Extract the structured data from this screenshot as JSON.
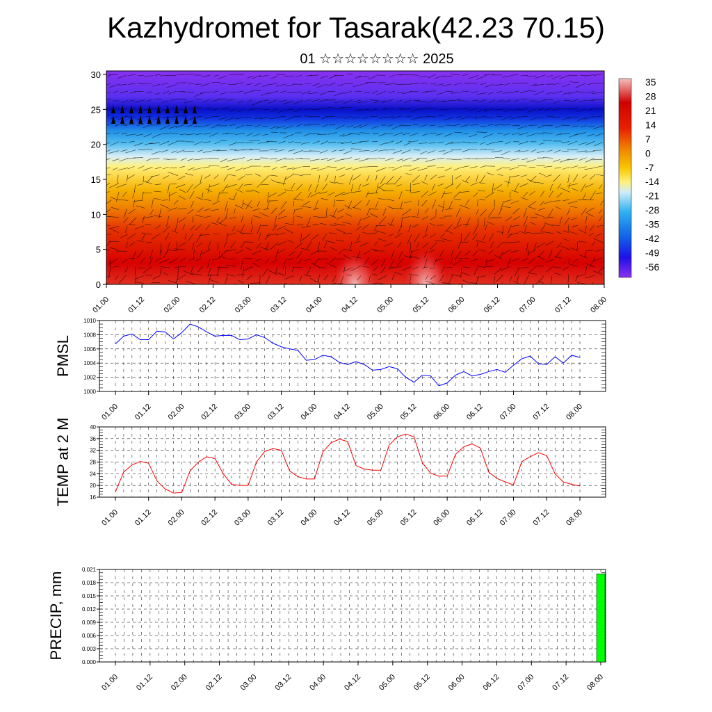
{
  "title": "Kazhydromet for Tasarak(42.23 70.15)",
  "subtitle": "01 ☆☆☆☆☆☆☆☆ 2025",
  "chart_data": [
    {
      "type": "heatmap",
      "y_ticks": [
        "0",
        "5",
        "10",
        "15",
        "20",
        "25",
        "30"
      ],
      "ylim": [
        0,
        30.5
      ],
      "x_ticks": [
        "01.00",
        "01.12",
        "02.00",
        "02.12",
        "03.00",
        "03.12",
        "04.00",
        "04.12",
        "05.00",
        "05.12",
        "06.00",
        "06.12",
        "07.00",
        "07.12",
        "08.00"
      ],
      "colorbar_labels": [
        "35",
        "28",
        "21",
        "14",
        "7",
        "0",
        "-7",
        "-14",
        "-21",
        "-28",
        "-35",
        "-42",
        "-49",
        "-56"
      ],
      "colorbar_range": [
        -63,
        42
      ],
      "colors": {
        "warm_peak": "#f4c0c0",
        "red": "#d80000",
        "orange": "#f4a400",
        "yellow": "#ffe870",
        "pale_blue": "#c0e4f4",
        "cyan": "#20a8e8",
        "blue": "#1020e0",
        "purple": "#8830f0"
      },
      "overlay": "wind vectors"
    },
    {
      "type": "line",
      "ylabel": "PMSL",
      "ylim": [
        1000,
        1010
      ],
      "y_ticks": [
        "1000",
        "1002",
        "1004",
        "1006",
        "1008",
        "1010"
      ],
      "x_ticks": [
        "01.00",
        "01.12",
        "02.00",
        "02.12",
        "03.00",
        "03.12",
        "04.00",
        "04.12",
        "05.00",
        "05.12",
        "06.00",
        "06.12",
        "07.00",
        "07.12",
        "08.00"
      ],
      "line_color": "#0000ff",
      "values": [
        1006.7,
        1007.8,
        1008.1,
        1007.3,
        1007.3,
        1008.5,
        1008.4,
        1007.4,
        1008.3,
        1009.5,
        1009.1,
        1008.4,
        1007.8,
        1007.9,
        1007.9,
        1007.3,
        1007.4,
        1008.0,
        1007.6,
        1006.8,
        1006.3,
        1006.0,
        1005.8,
        1004.4,
        1004.5,
        1005.1,
        1004.9,
        1004.1,
        1003.8,
        1004.2,
        1003.8,
        1003.0,
        1003.1,
        1003.5,
        1003.2,
        1002.0,
        1001.3,
        1002.3,
        1002.2,
        1000.8,
        1001.2,
        1002.3,
        1002.8,
        1002.2,
        1002.4,
        1002.8,
        1003.1,
        1002.7,
        1003.7,
        1004.6,
        1005.0,
        1003.9,
        1003.8,
        1004.9,
        1004.0,
        1005.1,
        1004.8
      ]
    },
    {
      "type": "line",
      "ylabel": "TEMP at 2 M",
      "ylim": [
        16,
        40
      ],
      "y_ticks": [
        "16",
        "20",
        "24",
        "28",
        "32",
        "36",
        "40"
      ],
      "x_ticks": [
        "01.00",
        "01.12",
        "02.00",
        "02.12",
        "03.00",
        "03.12",
        "04.00",
        "04.12",
        "05.00",
        "05.12",
        "06.00",
        "06.12",
        "07.00",
        "07.12",
        "08.00"
      ],
      "line_color": "#ff0000",
      "values": [
        17.8,
        24.6,
        27.0,
        28.2,
        27.6,
        21.6,
        18.8,
        17.4,
        17.6,
        25.0,
        28.0,
        29.8,
        29.2,
        24.0,
        20.4,
        20.0,
        20.0,
        28.0,
        31.6,
        32.6,
        32.0,
        25.0,
        23.0,
        22.2,
        22.2,
        31.4,
        34.6,
        35.8,
        35.0,
        26.8,
        25.6,
        25.2,
        25.2,
        33.8,
        36.6,
        37.6,
        36.6,
        27.8,
        24.2,
        23.2,
        23.2,
        30.6,
        33.2,
        34.2,
        32.8,
        24.6,
        22.4,
        21.2,
        20.2,
        28.2,
        29.8,
        31.2,
        30.2,
        24.0,
        21.2,
        20.4,
        19.8
      ]
    },
    {
      "type": "bar",
      "ylabel": "PRECIP, mm",
      "ylim": [
        0,
        0.021
      ],
      "y_ticks": [
        "0.000",
        "0.003",
        "0.006",
        "0.009",
        "0.012",
        "0.015",
        "0.018",
        "0.021"
      ],
      "x_ticks": [
        "01.00",
        "01.12",
        "02.00",
        "02.12",
        "03.00",
        "03.12",
        "04.00",
        "04.12",
        "05.00",
        "05.12",
        "06.00",
        "06.12",
        "07.00",
        "07.12",
        "08.00"
      ],
      "bar_color": "#00ff00",
      "bars": [
        {
          "x": "08.00",
          "value": 0.02
        }
      ]
    }
  ]
}
